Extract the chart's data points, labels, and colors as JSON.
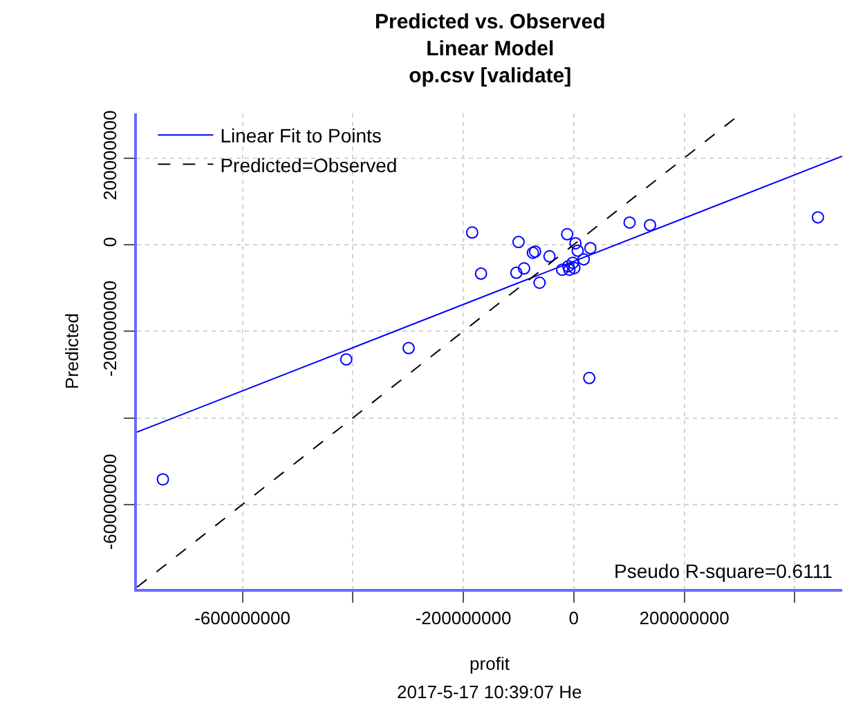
{
  "chart_data": {
    "type": "scatter",
    "title": "Predicted vs. Observed\nLinear Model\nop.csv [validate]",
    "xlabel": "profit",
    "ylabel": "Predicted",
    "xlim": [
      -791000000,
      486000000
    ],
    "ylim": [
      -795000000,
      303000000
    ],
    "xticks": [
      -600000000,
      {
        "value": -400000000,
        "label": null
      },
      -200000000,
      0,
      200000000,
      {
        "value": 400000000,
        "label": null
      }
    ],
    "yticks": [
      -600000000,
      {
        "value": -400000000,
        "label": null
      },
      -200000000,
      0,
      200000000
    ],
    "grid": true,
    "legend": "top left",
    "annotations": [
      "Pseudo R-square=0.6111",
      "2017-5-17 10:39:07 He"
    ],
    "series": [
      {
        "marker": "circle",
        "color": "#0000ff",
        "x": [
          -744000000,
          -412000000,
          -299000000,
          -184000000,
          -168000000,
          -100000000,
          -104000000,
          -90000000,
          -74000000,
          -70000000,
          -44000000,
          -62000000,
          -12000000,
          3000000,
          7000000,
          30000000,
          18000000,
          -21000000,
          -10000000,
          -2000000,
          1000000,
          -8000000,
          28000000,
          101000000,
          138000000,
          442000000
        ],
        "values": [
          -542000000,
          -265000000,
          -239000000,
          28000000,
          -67000000,
          6000000,
          -65000000,
          -55000000,
          -19000000,
          -16000000,
          -27000000,
          -88000000,
          24000000,
          3000000,
          -14000000,
          -8000000,
          -34000000,
          -58000000,
          -50000000,
          -42000000,
          -54000000,
          -58000000,
          -308000000,
          51000000,
          45000000,
          63000000
        ]
      },
      {
        "type": "line",
        "name": "Linear Fit to Points",
        "color": "#0000ff",
        "line_style": "solid",
        "x": [
          -791000000,
          486000000
        ],
        "values": [
          -433000000,
          204000000
        ]
      },
      {
        "type": "line",
        "name": "Predicted=Observed",
        "color": "#000000",
        "line_style": "dashed",
        "x": [
          -791000000,
          303000000
        ],
        "values": [
          -791000000,
          303000000
        ]
      }
    ]
  }
}
